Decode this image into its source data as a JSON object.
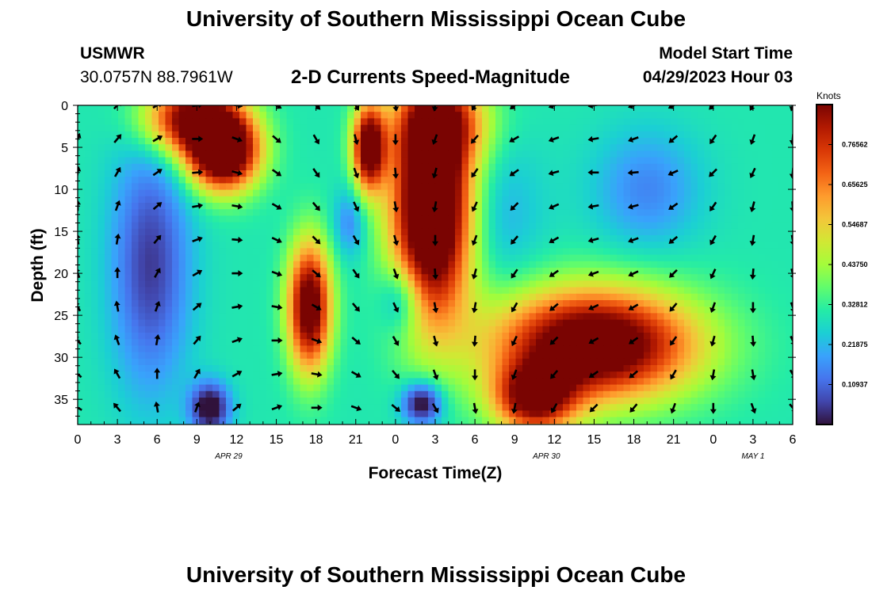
{
  "header": {
    "title": "University of Southern Mississippi Ocean Cube",
    "station_id": "USMWR",
    "station_coords": "30.0757N  88.7961W",
    "product": "2-D Currents Speed-Magnitude",
    "model_start_label": "Model Start Time",
    "model_start_value": "04/29/2023 Hour 03"
  },
  "footer": {
    "title": "University of Southern Mississippi Ocean Cube"
  },
  "colors": {
    "scale": [
      "#30123b",
      "#4145ab",
      "#4675ed",
      "#39a2fc",
      "#1bcfd4",
      "#24eca6",
      "#61fc6c",
      "#a4fc3b",
      "#d1e834",
      "#f3c63a",
      "#fe9b2d",
      "#f36315",
      "#d93806",
      "#b11901",
      "#7a0402"
    ],
    "arrow": "#000000"
  },
  "chart_data": {
    "type": "heatmap",
    "title": "2-D Currents Speed-Magnitude",
    "xlabel": "Forecast Time(Z)",
    "ylabel": "Depth (ft)",
    "x_ticks": [
      "0",
      "3",
      "6",
      "9",
      "12",
      "15",
      "18",
      "21",
      "0",
      "3",
      "6",
      "9",
      "12",
      "15",
      "18",
      "21",
      "0",
      "3",
      "6"
    ],
    "date_labels": [
      {
        "text": "APR 29",
        "tick_index": 3.8
      },
      {
        "text": "APR 30",
        "tick_index": 11.8
      },
      {
        "text": "MAY 1",
        "tick_index": 17
      }
    ],
    "y_ticks": [
      0,
      5,
      10,
      15,
      20,
      25,
      30,
      35
    ],
    "ylim": [
      0,
      38
    ],
    "colorbar": {
      "label": "Knots",
      "range": [
        0,
        0.875
      ],
      "ticks": [
        "0.10937",
        "0.21875",
        "0.32812",
        "0.43750",
        "0.54687",
        "0.65625",
        "0.76562"
      ]
    },
    "speed_features": [
      {
        "t": 11,
        "d": 5.5,
        "s": 0.82,
        "rt": 2.6,
        "rd": 4.5
      },
      {
        "t": 8.5,
        "d": 1.5,
        "s": 0.6,
        "rt": 3.5,
        "rd": 4.2
      },
      {
        "t": 22,
        "d": 5,
        "s": 0.68,
        "rt": 1.2,
        "rd": 5
      },
      {
        "t": 26.8,
        "d": 12,
        "s": 0.88,
        "rt": 3,
        "rd": 13
      },
      {
        "t": 27.5,
        "d": 2,
        "s": 0.35,
        "rt": 3.5,
        "rd": 5
      },
      {
        "t": 17.5,
        "d": 24,
        "s": 0.68,
        "rt": 1.6,
        "rd": 7.5
      },
      {
        "t": 39,
        "d": 28.5,
        "s": 0.74,
        "rt": 7.5,
        "rd": 6.5
      },
      {
        "t": 34.5,
        "d": 35,
        "s": 0.55,
        "rt": 3,
        "rd": 4
      },
      {
        "t": 5.5,
        "d": 19,
        "s": -0.25,
        "rt": 3,
        "rd": 15
      },
      {
        "t": 10,
        "d": 36,
        "s": -0.35,
        "rt": 1.5,
        "rd": 3
      },
      {
        "t": 26,
        "d": 35.5,
        "s": -0.35,
        "rt": 1.5,
        "rd": 2.5
      },
      {
        "t": 20.5,
        "d": 14,
        "s": -0.15,
        "rt": 1.2,
        "rd": 4
      },
      {
        "t": 24.5,
        "d": 23,
        "s": -0.2,
        "rt": 1.6,
        "rd": 4
      },
      {
        "t": 43,
        "d": 10,
        "s": -0.15,
        "rt": 4,
        "rd": 7
      },
      {
        "t": 31.5,
        "d": 13,
        "s": -0.1,
        "rt": 3.5,
        "rd": 9
      }
    ],
    "arrow_times": [
      0,
      3,
      6,
      9,
      12,
      15,
      18,
      21,
      24,
      27,
      30,
      33,
      36,
      39,
      42,
      45,
      48,
      51,
      54
    ],
    "arrow_depths": [
      0,
      4,
      8,
      12,
      16,
      20,
      24,
      28,
      32,
      36
    ],
    "arrow_directions_deg": [
      [
        30,
        45,
        60,
        80,
        100,
        120,
        135,
        150,
        170,
        190,
        210,
        230,
        250,
        260,
        250,
        240,
        225,
        210,
        195
      ],
      [
        20,
        40,
        60,
        90,
        110,
        130,
        150,
        165,
        180,
        200,
        220,
        240,
        250,
        260,
        250,
        230,
        215,
        200,
        185
      ],
      [
        10,
        30,
        55,
        85,
        105,
        125,
        145,
        160,
        175,
        195,
        215,
        235,
        255,
        270,
        265,
        245,
        225,
        205,
        185
      ],
      [
        0,
        20,
        50,
        80,
        100,
        120,
        140,
        155,
        170,
        190,
        205,
        225,
        245,
        260,
        255,
        235,
        215,
        195,
        175
      ],
      [
        350,
        10,
        40,
        70,
        95,
        115,
        135,
        150,
        165,
        180,
        200,
        220,
        240,
        255,
        250,
        230,
        210,
        190,
        170
      ],
      [
        340,
        0,
        30,
        60,
        90,
        110,
        130,
        145,
        160,
        175,
        195,
        215,
        235,
        250,
        245,
        225,
        205,
        185,
        165
      ],
      [
        330,
        350,
        20,
        50,
        80,
        100,
        120,
        140,
        155,
        170,
        190,
        210,
        230,
        245,
        240,
        220,
        200,
        180,
        160
      ],
      [
        320,
        340,
        10,
        40,
        70,
        90,
        110,
        130,
        150,
        165,
        185,
        205,
        225,
        240,
        235,
        215,
        195,
        175,
        155
      ],
      [
        310,
        330,
        0,
        30,
        60,
        80,
        100,
        120,
        140,
        160,
        180,
        200,
        220,
        235,
        230,
        210,
        190,
        170,
        150
      ],
      [
        300,
        320,
        350,
        20,
        50,
        70,
        90,
        110,
        130,
        150,
        170,
        190,
        210,
        225,
        220,
        200,
        180,
        160,
        140
      ]
    ]
  }
}
